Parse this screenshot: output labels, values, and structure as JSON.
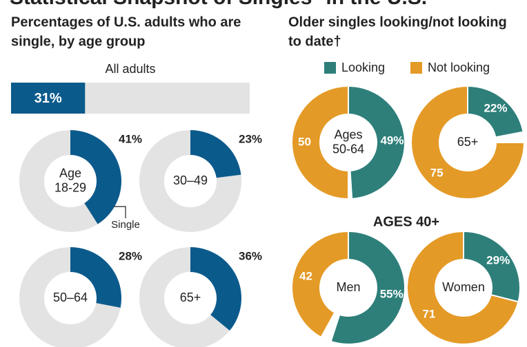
{
  "title": "Statistical Snapshot of Singles* in the U.S.",
  "chart_data": [
    {
      "type": "bar",
      "title": [
        "Percentages of U.S. adults who are",
        "single, by age group"
      ],
      "categories": [
        "All adults"
      ],
      "values": [
        31
      ],
      "value_labels": [
        "31%"
      ],
      "color": "#0b5a8c",
      "track": "#e3e3e3",
      "xlim": [
        0,
        100
      ]
    },
    {
      "type": "single",
      "label": [
        "Age",
        "18-29"
      ],
      "values": [
        41
      ],
      "value_labels": [
        "41%"
      ],
      "annotation": "Single",
      "color": "#0b5a8c",
      "track": "#e3e3e3",
      "xlim": [
        0,
        100
      ]
    },
    {
      "type": "single",
      "label": [
        "30–49"
      ],
      "values": [
        23
      ],
      "value_labels": [
        "23%"
      ],
      "color": "#0b5a8c",
      "track": "#e3e3e3",
      "xlim": [
        0,
        100
      ]
    },
    {
      "type": "single",
      "label": [
        "50–64"
      ],
      "values": [
        28
      ],
      "value_labels": [
        "28%"
      ],
      "color": "#0b5a8c",
      "track": "#e3e3e3",
      "xlim": [
        0,
        100
      ]
    },
    {
      "type": "single",
      "label": [
        "65+"
      ],
      "values": [
        36
      ],
      "value_labels": [
        "36%"
      ],
      "color": "#0b5a8c",
      "track": "#e3e3e3",
      "xlim": [
        0,
        100
      ]
    },
    {
      "type": "split",
      "title": [
        "Older singles looking/not looking",
        "to date†"
      ],
      "categories": [
        "Looking",
        "Not looking"
      ],
      "label": [
        "Ages",
        "50-64"
      ],
      "values": [
        49,
        50
      ],
      "value_labels": [
        "49%",
        "50"
      ],
      "colors": [
        "#2e7f7a",
        "#e49a26"
      ],
      "xlim": [
        0,
        100
      ]
    },
    {
      "type": "split",
      "label": [
        "65+"
      ],
      "values": [
        22,
        75
      ],
      "value_labels": [
        "22%",
        "75"
      ],
      "colors": [
        "#2e7f7a",
        "#e49a26"
      ],
      "xlim": [
        0,
        100
      ]
    },
    {
      "type": "split",
      "title": [
        "AGES 40+"
      ],
      "label": [
        "Men"
      ],
      "values": [
        55,
        42
      ],
      "value_labels": [
        "55%",
        "42"
      ],
      "colors": [
        "#2e7f7a",
        "#e49a26"
      ],
      "xlim": [
        0,
        100
      ]
    },
    {
      "type": "split",
      "label": [
        "Women"
      ],
      "values": [
        29,
        71
      ],
      "value_labels": [
        "29%",
        "71"
      ],
      "colors": [
        "#2e7f7a",
        "#e49a26"
      ],
      "xlim": [
        0,
        100
      ]
    }
  ]
}
